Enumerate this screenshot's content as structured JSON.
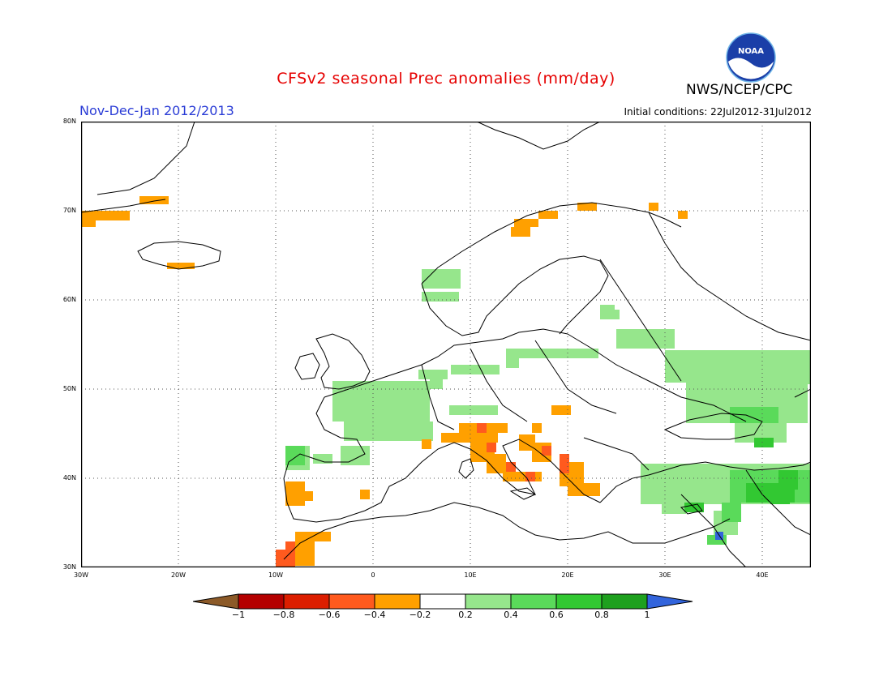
{
  "header": {
    "title": "CFSv2 seasonal Prec anomalies (mm/day)",
    "period": "Nov-Dec-Jan 2012/2013",
    "initial_conditions": "Initial conditions: 22Jul2012-31Jul2012",
    "agency": "NWS/NCEP/CPC",
    "logo_text": "NOAA"
  },
  "map": {
    "lon_range": [
      -30,
      45
    ],
    "lat_range": [
      30,
      80
    ],
    "lat_labels": [
      "80N",
      "70N",
      "60N",
      "50N",
      "40N",
      "30N"
    ],
    "lon_labels": [
      "30W",
      "20W",
      "10W",
      "0",
      "10E",
      "20E",
      "30E",
      "40E"
    ],
    "land_outline_color": "#000000",
    "grid": "dotted"
  },
  "anomaly_regions": [
    {
      "name": "greenland-east",
      "color": "#ffa000",
      "lat": 69.5,
      "lon": -28,
      "anomaly": "-0.2 to -0.4"
    },
    {
      "name": "iceland",
      "color": "#ffa000",
      "lat": 64,
      "lon": -20,
      "anomaly": "-0.2 to -0.4"
    },
    {
      "name": "scandinavia-north",
      "color": "#ffa000",
      "lat": 69.5,
      "lon": 17,
      "anomaly": "-0.2 to -0.4"
    },
    {
      "name": "western-europe",
      "color": "#96e68c",
      "lat": 47,
      "lon": 2,
      "anomaly": "0.2 to 0.4"
    },
    {
      "name": "eastern-europe",
      "color": "#96e68c",
      "lat": 52,
      "lon": 35,
      "anomaly": "0.2 to 0.4"
    },
    {
      "name": "italy-balkans",
      "color": "#ffa000",
      "lat": 42,
      "lon": 14,
      "anomaly": "-0.2 to -0.6"
    },
    {
      "name": "iberia-west",
      "color": "#ffa000",
      "lat": 39,
      "lon": -8,
      "anomaly": "-0.2 to -0.4"
    },
    {
      "name": "morocco",
      "color": "#ff5a1e",
      "lat": 31.5,
      "lon": -8,
      "anomaly": "-0.4 to -0.6"
    },
    {
      "name": "turkey-middle-east",
      "color": "#32c832",
      "lat": 38,
      "lon": 38,
      "anomaly": "0.4 to 0.8"
    }
  ],
  "colorbar": {
    "colors": [
      "#8c5a28",
      "#b40000",
      "#dc1e00",
      "#ff5a1e",
      "#ffa000",
      "#ffffff",
      "#96e68c",
      "#5ada5a",
      "#32c832",
      "#1ea01e",
      "#3264dc"
    ],
    "labels": [
      "-1",
      "-0.8",
      "-0.6",
      "-0.4",
      "-0.2",
      "0.2",
      "0.4",
      "0.6",
      "0.8",
      "1"
    ]
  }
}
